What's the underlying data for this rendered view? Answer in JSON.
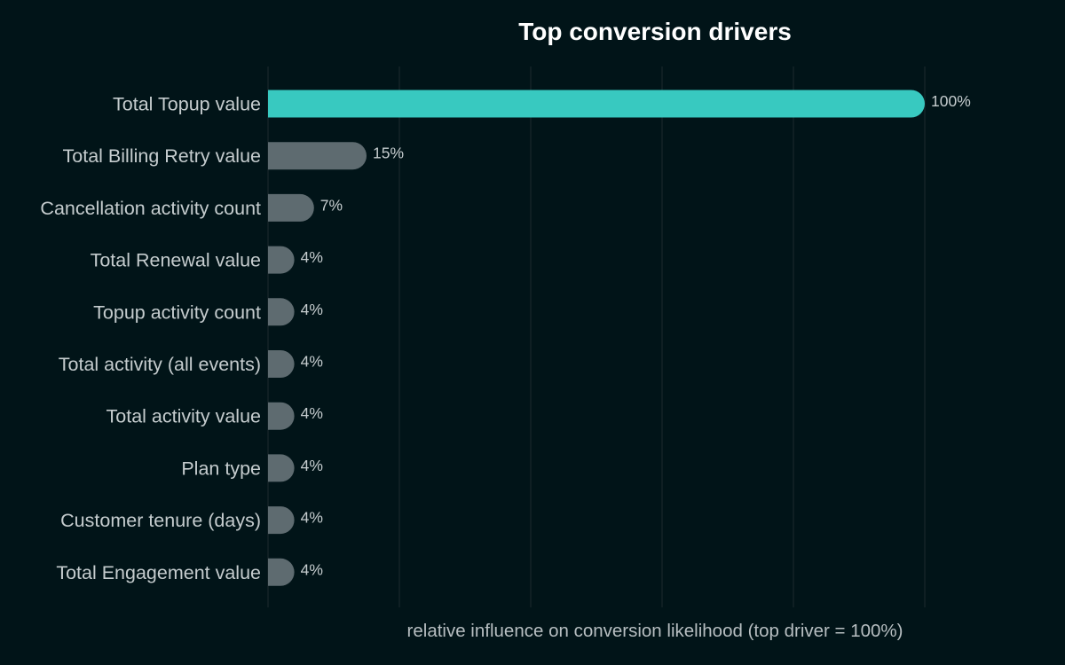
{
  "chart_data": {
    "type": "bar",
    "orientation": "horizontal",
    "title": "Top conversion drivers",
    "xlabel": "relative influence on conversion likelihood (top driver = 100%)",
    "ylabel": "",
    "categories": [
      "Total Topup value",
      "Total Billing Retry value",
      "Cancellation activity count",
      "Total Renewal value",
      "Topup activity count",
      "Total activity (all events)",
      "Total activity value",
      "Plan type",
      "Customer tenure (days)",
      "Total Engagement value"
    ],
    "values": [
      100,
      15,
      7,
      4,
      4,
      4,
      4,
      4,
      4,
      4
    ],
    "value_labels": [
      "100%",
      "15%",
      "7%",
      "4%",
      "4%",
      "4%",
      "4%",
      "4%",
      "4%",
      "4%"
    ],
    "xlim": [
      0,
      100
    ],
    "grid": true,
    "highlight_color": "#38c9c0",
    "bar_color": "#5e6b70",
    "background_color": "#011418"
  }
}
